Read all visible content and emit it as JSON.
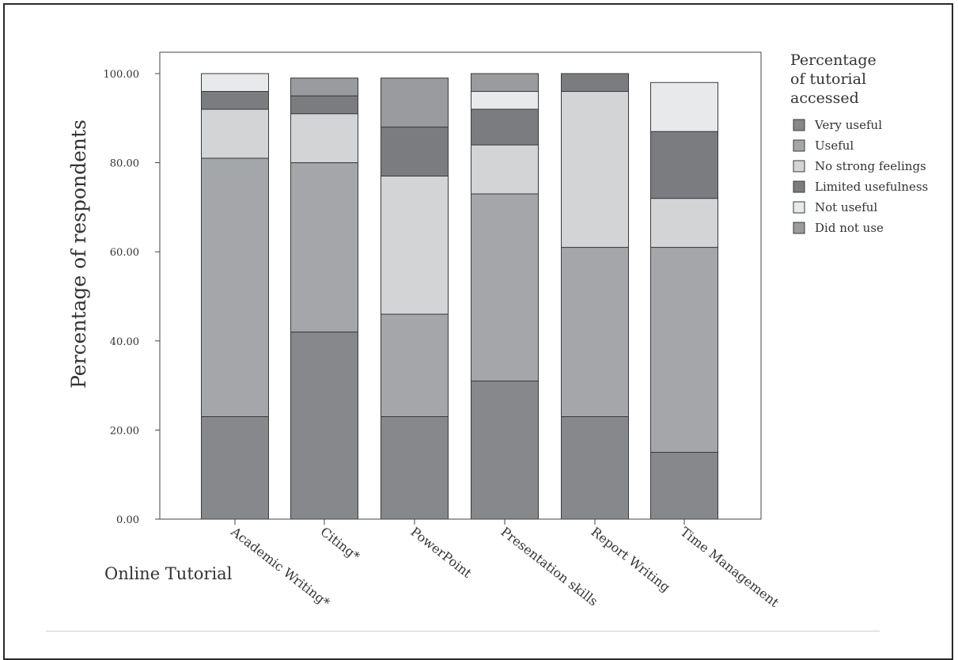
{
  "chart_data": {
    "type": "bar",
    "stacked": true,
    "categories": [
      "Academic Writing*",
      "Citing*",
      "PowerPoint",
      "Presentation skills",
      "Report Writing",
      "Time Management"
    ],
    "series": [
      {
        "name": "Very useful",
        "color": "#87888b",
        "values": [
          23,
          42,
          23,
          31,
          23,
          15
        ]
      },
      {
        "name": "Useful",
        "color": "#a4a6a9",
        "values": [
          58,
          38,
          23,
          42,
          38,
          46
        ]
      },
      {
        "name": "No strong feelings",
        "color": "#d3d4d6",
        "values": [
          11,
          11,
          31,
          11,
          35,
          11
        ]
      },
      {
        "name": "Limited usefulness",
        "color": "#7b7c80",
        "values": [
          4,
          4,
          11,
          8,
          4,
          15
        ]
      },
      {
        "name": "Not useful",
        "color": "#e8e9ea",
        "values": [
          4,
          0,
          0,
          4,
          0,
          11
        ]
      },
      {
        "name": "Did not use",
        "color": "#9a9b9e",
        "values": [
          0,
          4,
          11,
          4,
          0,
          0
        ]
      }
    ],
    "title": "",
    "xlabel": "Online Tutorial",
    "ylabel": "Percentage of respondents",
    "ylim": [
      0,
      100
    ],
    "yticks": [
      "0.00",
      "20.00",
      "40.00",
      "60.00",
      "80.00",
      "100.00"
    ],
    "grid": false,
    "legend": {
      "title_lines": [
        "Percentage",
        "of tutorial",
        "accessed"
      ],
      "position": "right"
    }
  }
}
